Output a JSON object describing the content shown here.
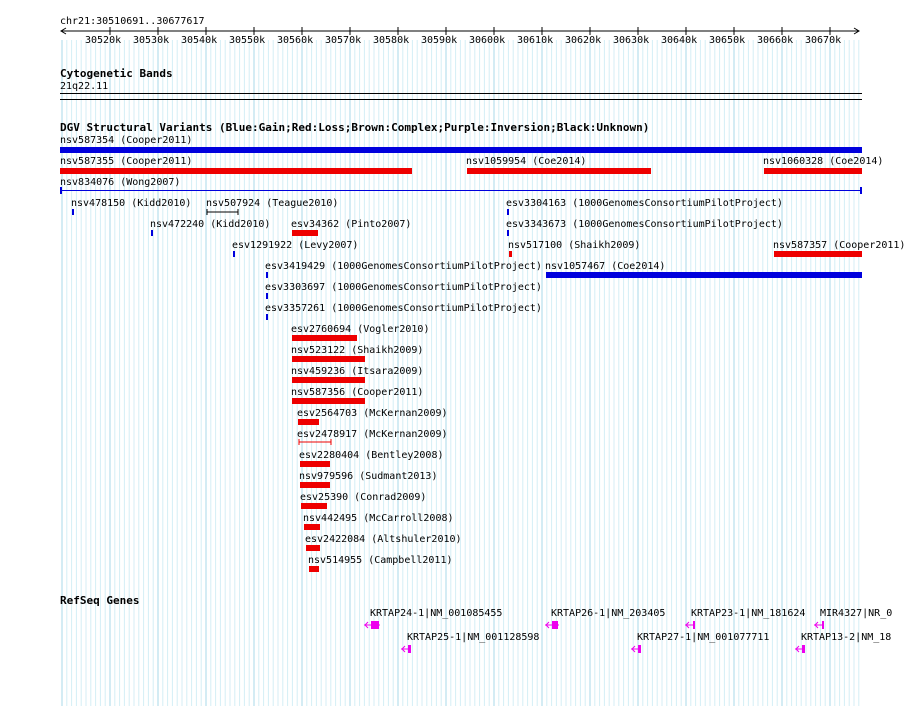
{
  "ruler": {
    "coords": "chr21:30510691..30677617",
    "ticks": [
      "30520k",
      "30530k",
      "30540k",
      "30550k",
      "30560k",
      "30570k",
      "30580k",
      "30590k",
      "30600k",
      "30610k",
      "30620k",
      "30630k",
      "30640k",
      "30650k",
      "30660k",
      "30670k"
    ]
  },
  "cyto": {
    "title": "Cytogenetic Bands",
    "band": "21q22.11"
  },
  "dgv": {
    "title": "DGV Structural Variants (Blue:Gain;Red:Loss;Brown:Complex;Purple:Inversion;Black:Unknown)",
    "colors": {
      "gain": "#0000dd",
      "loss": "#ee0000",
      "unknown": "#000000"
    },
    "features": [
      {
        "label": "nsv587354 (Cooper2011)",
        "type": "gain"
      },
      {
        "label": "nsv587355 (Cooper2011)",
        "type": "loss"
      },
      {
        "label": "nsv1059954 (Coe2014)",
        "type": "loss"
      },
      {
        "label": "nsv1060328 (Coe2014)",
        "type": "loss"
      },
      {
        "label": "nsv834076 (Wong2007)",
        "type": "gain"
      },
      {
        "label": "nsv478150 (Kidd2010)",
        "type": "gain"
      },
      {
        "label": "nsv507924 (Teague2010)",
        "type": "unknown"
      },
      {
        "label": "esv3304163 (1000GenomesConsortiumPilotProject)",
        "type": "gain"
      },
      {
        "label": "nsv472240 (Kidd2010)",
        "type": "gain"
      },
      {
        "label": "esv34362 (Pinto2007)",
        "type": "loss"
      },
      {
        "label": "esv3343673 (1000GenomesConsortiumPilotProject)",
        "type": "gain"
      },
      {
        "label": "esv1291922 (Levy2007)",
        "type": "gain"
      },
      {
        "label": "nsv517100 (Shaikh2009)",
        "type": "loss"
      },
      {
        "label": "nsv587357 (Cooper2011)",
        "type": "loss"
      },
      {
        "label": "esv3419429 (1000GenomesConsortiumPilotProject)",
        "type": "gain"
      },
      {
        "label": "nsv1057467 (Coe2014)",
        "type": "gain"
      },
      {
        "label": "esv3303697 (1000GenomesConsortiumPilotProject)",
        "type": "gain"
      },
      {
        "label": "esv3357261 (1000GenomesConsortiumPilotProject)",
        "type": "gain"
      },
      {
        "label": "esv2760694 (Vogler2010)",
        "type": "loss"
      },
      {
        "label": "nsv523122 (Shaikh2009)",
        "type": "loss"
      },
      {
        "label": "nsv459236 (Itsara2009)",
        "type": "loss"
      },
      {
        "label": "nsv587356 (Cooper2011)",
        "type": "loss"
      },
      {
        "label": "esv2564703 (McKernan2009)",
        "type": "loss"
      },
      {
        "label": "esv2478917 (McKernan2009)",
        "type": "loss"
      },
      {
        "label": "esv2280404 (Bentley2008)",
        "type": "loss"
      },
      {
        "label": "nsv979596 (Sudmant2013)",
        "type": "loss"
      },
      {
        "label": "esv25390 (Conrad2009)",
        "type": "loss"
      },
      {
        "label": "nsv442495 (McCarroll2008)",
        "type": "loss"
      },
      {
        "label": "esv2422084 (Altshuler2010)",
        "type": "loss"
      },
      {
        "label": "nsv514955 (Campbell2011)",
        "type": "loss"
      }
    ]
  },
  "refseq": {
    "title": "RefSeq Genes",
    "color": "#ee00ee",
    "genes": [
      {
        "label": "KRTAP24-1|NM_001085455"
      },
      {
        "label": "KRTAP26-1|NM_203405"
      },
      {
        "label": "KRTAP23-1|NM_181624"
      },
      {
        "label": "MIR4327|NR_0"
      },
      {
        "label": "KRTAP25-1|NM_001128598"
      },
      {
        "label": "KRTAP27-1|NM_001077711"
      },
      {
        "label": "KRTAP13-2|NM_18"
      }
    ]
  }
}
